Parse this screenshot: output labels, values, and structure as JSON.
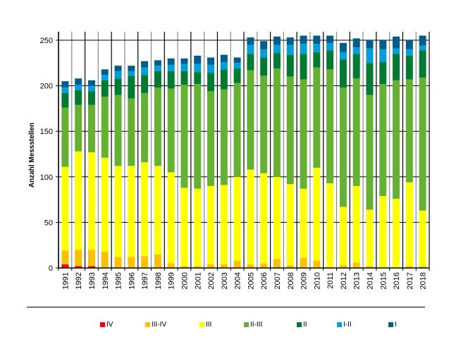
{
  "chart_data": {
    "type": "bar",
    "stacked": true,
    "title": "",
    "xlabel": "",
    "ylabel": "Anzahl Messstellen",
    "ylim": [
      0,
      250
    ],
    "yticks": [
      0,
      50,
      100,
      150,
      200,
      250
    ],
    "grid": true,
    "legend_position": "bottom",
    "categories": [
      "1991",
      "1992",
      "1993",
      "1994",
      "1995",
      "1996",
      "1997",
      "1998",
      "1999",
      "2000",
      "2001",
      "2002",
      "2003",
      "2004",
      "2005",
      "2006",
      "2007",
      "2008",
      "2009",
      "2010",
      "2011",
      "2012",
      "2013",
      "2014",
      "2015",
      "2016",
      "2017",
      "2018"
    ],
    "series": [
      {
        "name": "IV",
        "color": "#ff0000",
        "values": [
          4,
          2,
          2,
          0,
          0,
          0,
          0,
          0,
          0,
          0,
          0,
          0,
          0,
          0,
          0,
          0,
          0,
          0,
          0,
          0,
          0,
          0,
          0,
          0,
          0,
          0,
          0,
          0
        ]
      },
      {
        "name": "III-IV",
        "color": "#ffc000",
        "values": [
          15,
          18,
          18,
          18,
          12,
          12,
          13,
          15,
          5,
          2,
          2,
          4,
          4,
          8,
          4,
          5,
          10,
          3,
          11,
          8,
          1,
          3,
          6,
          2,
          0,
          0,
          2,
          2
        ]
      },
      {
        "name": "III",
        "color": "#ffff00",
        "values": [
          92,
          108,
          107,
          103,
          100,
          100,
          103,
          97,
          100,
          86,
          85,
          86,
          87,
          92,
          104,
          99,
          90,
          89,
          76,
          102,
          92,
          64,
          84,
          62,
          79,
          76,
          92,
          61
        ]
      },
      {
        "name": "II-III",
        "color": "#66b032",
        "values": [
          65,
          51,
          52,
          67,
          78,
          74,
          76,
          86,
          92,
          113,
          115,
          104,
          105,
          103,
          109,
          107,
          119,
          118,
          120,
          110,
          125,
          131,
          118,
          126,
          123,
          130,
          113,
          146
        ]
      },
      {
        "name": "II",
        "color": "#007a33",
        "values": [
          16,
          16,
          15,
          18,
          18,
          25,
          20,
          18,
          19,
          15,
          13,
          20,
          22,
          16,
          18,
          20,
          17,
          24,
          28,
          17,
          21,
          31,
          27,
          35,
          24,
          29,
          26,
          30
        ]
      },
      {
        "name": "I-II",
        "color": "#009fd9",
        "values": [
          6,
          6,
          6,
          6,
          8,
          5,
          8,
          6,
          7,
          8,
          9,
          9,
          8,
          6,
          10,
          9,
          9,
          11,
          11,
          9,
          8,
          8,
          7,
          16,
          14,
          6,
          7,
          5
        ]
      },
      {
        "name": "I",
        "color": "#005c8a",
        "values": [
          7,
          7,
          6,
          6,
          6,
          6,
          7,
          6,
          7,
          6,
          9,
          8,
          8,
          6,
          8,
          9,
          9,
          8,
          9,
          9,
          8,
          10,
          10,
          9,
          10,
          13,
          10,
          11
        ]
      }
    ]
  }
}
